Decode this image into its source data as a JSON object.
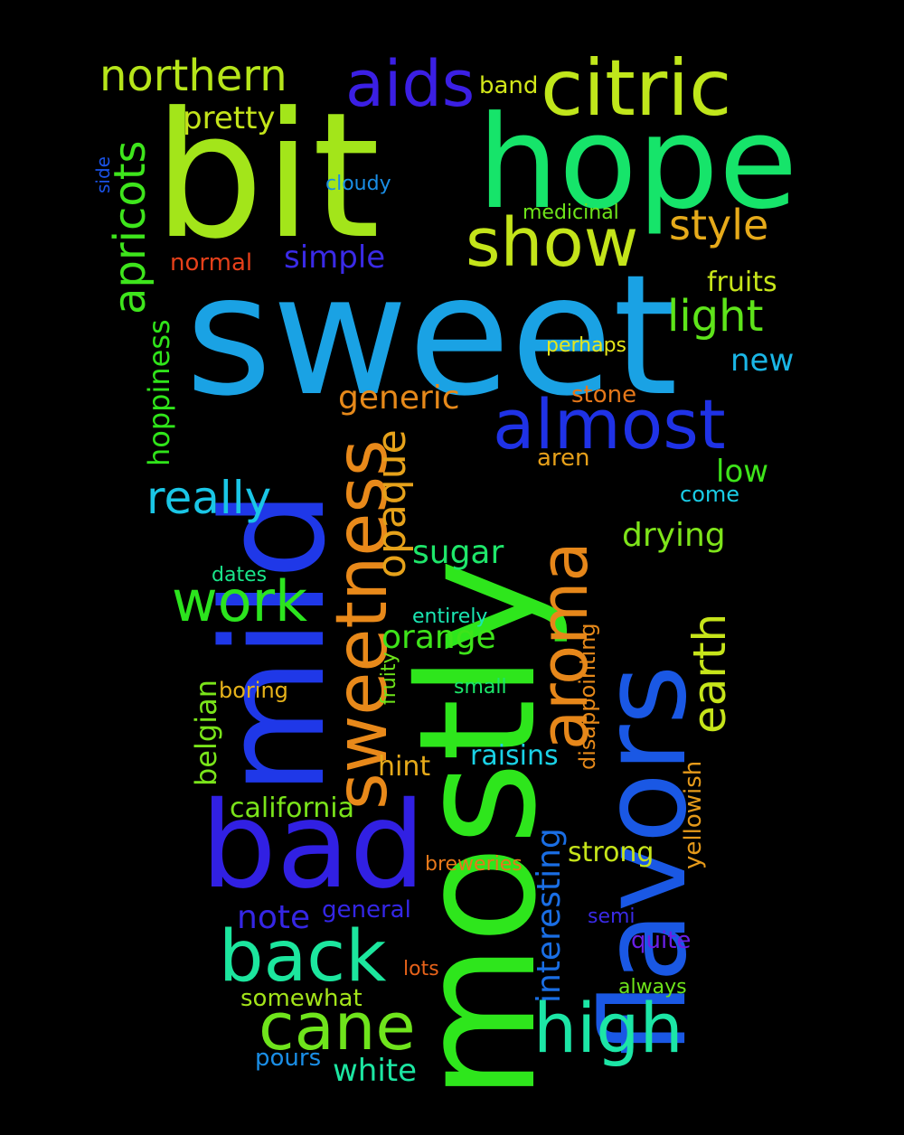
{
  "words": {
    "sweet": {
      "text": "sweet",
      "color": "#1aa2e4"
    },
    "mostly": {
      "text": "mostly",
      "color": "#2ee61c"
    },
    "bit": {
      "text": "bit",
      "color": "#a3e51a"
    },
    "mild": {
      "text": "mild",
      "color": "#1f38e8"
    },
    "hope": {
      "text": "hope",
      "color": "#16e46a"
    },
    "flavors": {
      "text": "flavors",
      "color": "#1a58e4"
    },
    "bad": {
      "text": "bad",
      "color": "#3120e3"
    },
    "citric": {
      "text": "citric",
      "color": "#c0e61b"
    },
    "sweetness": {
      "text": "sweetness",
      "color": "#e8891a"
    },
    "almost": {
      "text": "almost",
      "color": "#1f32e6"
    },
    "show": {
      "text": "show",
      "color": "#c4e41a"
    },
    "aids": {
      "text": "aids",
      "color": "#3b1fe4"
    },
    "aroma": {
      "text": "aroma",
      "color": "#e6871a"
    },
    "back": {
      "text": "back",
      "color": "#1ce69e"
    },
    "high": {
      "text": "high",
      "color": "#1ce6a6"
    },
    "cane": {
      "text": "cane",
      "color": "#6fe41c"
    },
    "work": {
      "text": "work",
      "color": "#2ce41e"
    },
    "northern": {
      "text": "northern",
      "color": "#b6e51a"
    },
    "earth": {
      "text": "earth",
      "color": "#c6e41a"
    },
    "apricots": {
      "text": "apricots",
      "color": "#3ee51c"
    },
    "style": {
      "text": "style",
      "color": "#e6aa1a"
    },
    "really": {
      "text": "really",
      "color": "#1ac6e6"
    },
    "light": {
      "text": "light",
      "color": "#5ee41a"
    },
    "opaque": {
      "text": "opaque",
      "color": "#e6a21a"
    },
    "interesting": {
      "text": "interesting",
      "color": "#1a6ee4"
    },
    "pretty": {
      "text": "pretty",
      "color": "#c4e41a"
    },
    "generic": {
      "text": "generic",
      "color": "#e6891a"
    },
    "drying": {
      "text": "drying",
      "color": "#7ee41a"
    },
    "orange": {
      "text": "orange",
      "color": "#3ee41a"
    },
    "note": {
      "text": "note",
      "color": "#3526e4"
    },
    "simple": {
      "text": "simple",
      "color": "#3a2ae6"
    },
    "sugar": {
      "text": "sugar",
      "color": "#1ee66a"
    },
    "hoppiness": {
      "text": "hoppiness",
      "color": "#30e41a"
    },
    "belgian": {
      "text": "belgian",
      "color": "#7ae41a"
    },
    "low": {
      "text": "low",
      "color": "#3ee41a"
    },
    "new": {
      "text": "new",
      "color": "#1ab6e6"
    },
    "fruits": {
      "text": "fruits",
      "color": "#c6e41a"
    },
    "white": {
      "text": "white",
      "color": "#1ce6a2"
    },
    "strong": {
      "text": "strong",
      "color": "#c6e41a"
    },
    "raisins": {
      "text": "raisins",
      "color": "#1ad2e6"
    },
    "california": {
      "text": "california",
      "color": "#7ae41a"
    },
    "hint": {
      "text": "hint",
      "color": "#e6aa1a"
    },
    "yellowish": {
      "text": "yellowish",
      "color": "#e69a1a"
    },
    "normal": {
      "text": "normal",
      "color": "#e6401a"
    },
    "disappointing": {
      "text": "disappointing",
      "color": "#e6891a"
    },
    "stone": {
      "text": "stone",
      "color": "#e6781a"
    },
    "general": {
      "text": "general",
      "color": "#3426e6"
    },
    "quite": {
      "text": "quite",
      "color": "#6a1ee6"
    },
    "somewhat": {
      "text": "somewhat",
      "color": "#a3e41a"
    },
    "pours": {
      "text": "pours",
      "color": "#1a8ee6"
    },
    "medicinal": {
      "text": "medicinal",
      "color": "#6ee41a"
    },
    "come": {
      "text": "come",
      "color": "#1acce6"
    },
    "boring": {
      "text": "boring",
      "color": "#e6b21a"
    },
    "band": {
      "text": "band",
      "color": "#d2e61a"
    },
    "aren": {
      "text": "aren",
      "color": "#e6a01a"
    },
    "perhaps": {
      "text": "perhaps",
      "color": "#e6e61a"
    },
    "dates": {
      "text": "dates",
      "color": "#1ae68a"
    },
    "cloudy": {
      "text": "cloudy",
      "color": "#1a8ee6"
    },
    "small": {
      "text": "small",
      "color": "#1ce66a"
    },
    "fruity": {
      "text": "fruity",
      "color": "#6ee41a"
    },
    "entirely": {
      "text": "entirely",
      "color": "#1ae6b2"
    },
    "breweries": {
      "text": "breweries",
      "color": "#e6781a"
    },
    "lots": {
      "text": "lots",
      "color": "#e6621a"
    },
    "semi": {
      "text": "semi",
      "color": "#3a2ae6"
    },
    "always": {
      "text": "always",
      "color": "#6ee41a"
    },
    "side": {
      "text": "side",
      "color": "#1a52e6"
    }
  }
}
